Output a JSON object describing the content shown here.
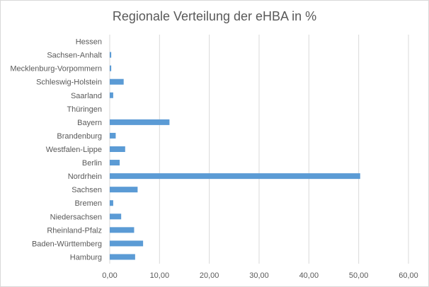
{
  "chart_data": {
    "type": "bar",
    "orientation": "horizontal",
    "title": "Regionale Verteilung der eHBA in %",
    "xlabel": "",
    "ylabel": "",
    "xlim": [
      0,
      60
    ],
    "grid": "vertical",
    "legend": "none",
    "categories": [
      "Hessen",
      "Sachsen-Anhalt",
      "Mecklenburg-Vorpommern",
      "Schleswig-Holstein",
      "Saarland",
      "Thüringen",
      "Bayern",
      "Brandenburg",
      "Westfalen-Lippe",
      "Berlin",
      "Nordrhein",
      "Sachsen",
      "Bremen",
      "Niedersachsen",
      "Rheinland-Pfalz",
      "Baden-Württemberg",
      "Hamburg"
    ],
    "values": [
      0.0,
      0.3,
      0.3,
      2.8,
      0.7,
      0.0,
      12.0,
      1.2,
      3.1,
      2.0,
      50.3,
      5.6,
      0.7,
      2.3,
      4.9,
      6.7,
      5.1
    ],
    "tick_labels": [
      "0,00",
      "10,00",
      "20,00",
      "30,00",
      "40,00",
      "50,00",
      "60,00"
    ],
    "bar_color": "#5b9bd5",
    "grid_color": "#d9d9d9"
  }
}
